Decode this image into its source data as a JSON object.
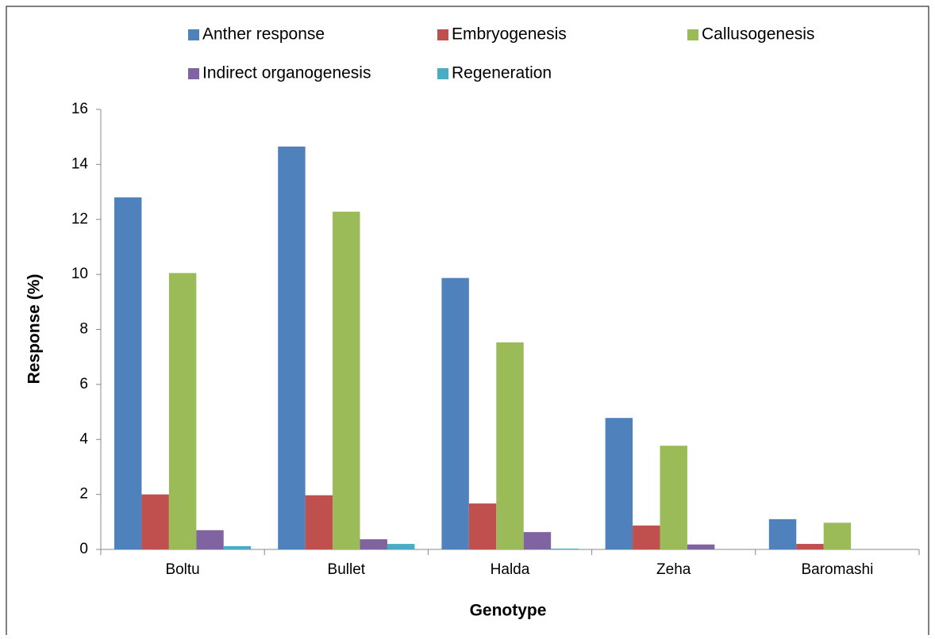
{
  "chart_data": {
    "type": "bar",
    "categories": [
      "Boltu",
      "Bullet",
      "Halda",
      "Zeha",
      "Baromashi"
    ],
    "series": [
      {
        "name": "Anther response",
        "color": "#4f81bd",
        "values": [
          12.8,
          14.65,
          9.87,
          4.78,
          1.1
        ]
      },
      {
        "name": "Embryogenesis",
        "color": "#c0504d",
        "values": [
          2.0,
          1.97,
          1.67,
          0.87,
          0.2
        ]
      },
      {
        "name": "Callusogenesis",
        "color": "#9bbb59",
        "values": [
          10.05,
          12.28,
          7.53,
          3.77,
          0.97
        ]
      },
      {
        "name": "Indirect organogenesis",
        "color": "#8064a2",
        "values": [
          0.7,
          0.37,
          0.63,
          0.18,
          0
        ]
      },
      {
        "name": "Regeneration",
        "color": "#4bacc6",
        "values": [
          0.12,
          0.2,
          0.03,
          0,
          0
        ]
      }
    ],
    "ylim": [
      0,
      16
    ],
    "yticks": [
      0,
      2,
      4,
      6,
      8,
      10,
      12,
      14,
      16
    ],
    "xlabel": "Genotype",
    "ylabel": "Response (%)",
    "legend": "top"
  }
}
